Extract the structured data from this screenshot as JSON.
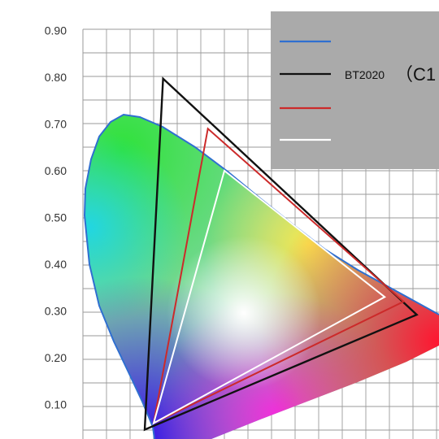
{
  "chart_data": {
    "type": "scatter",
    "title": "",
    "xlabel": "",
    "ylabel": "",
    "ylim": [
      0.0,
      0.9
    ],
    "y_tick_labels": [
      "0.90",
      "0.80",
      "0.70",
      "0.60",
      "0.50",
      "0.40",
      "0.30",
      "0.20",
      "0.10"
    ],
    "grid": true,
    "legend_position": "top-right",
    "legend": [
      {
        "line_color": "#2f6fd0",
        "label": "",
        "label_suffix": ""
      },
      {
        "line_color": "#111111",
        "label": "BT2020",
        "label_suffix": "（C1"
      },
      {
        "line_color": "#cc2a2a",
        "label": "",
        "label_suffix": ""
      },
      {
        "line_color": "#ffffff",
        "label": "",
        "label_suffix": ""
      }
    ],
    "gamuts": [
      {
        "name": "BT2020",
        "color": "#111111",
        "points": [
          [
            0.708,
            0.292
          ],
          [
            0.17,
            0.797
          ],
          [
            0.131,
            0.046
          ]
        ]
      },
      {
        "name": "red",
        "color": "#cc2a2a",
        "points": [
          [
            0.68,
            0.32
          ],
          [
            0.265,
            0.69
          ],
          [
            0.15,
            0.06
          ]
        ]
      },
      {
        "name": "white",
        "color": "#ffffff",
        "points": [
          [
            0.64,
            0.33
          ],
          [
            0.3,
            0.6
          ],
          [
            0.15,
            0.06
          ]
        ]
      }
    ],
    "locus_color": "#2f6fd0"
  }
}
